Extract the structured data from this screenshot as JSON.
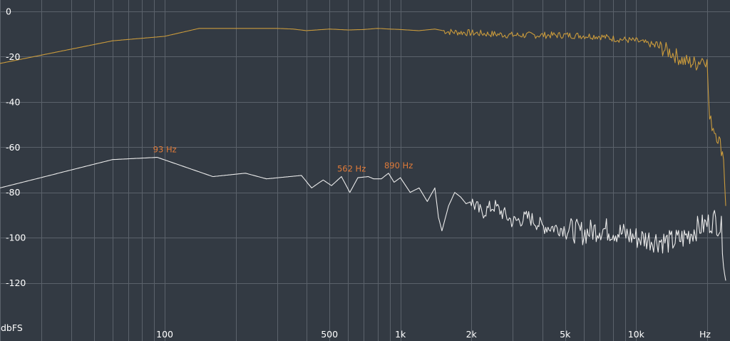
{
  "chart_data": {
    "type": "line",
    "title": "",
    "xlabel": "Hz",
    "ylabel": "dbFS",
    "x_scale": "log",
    "xlim": [
      20,
      24000
    ],
    "ylim": [
      -140,
      0
    ],
    "grid": true,
    "x_ticks": [
      {
        "value": 100,
        "label": "100"
      },
      {
        "value": 500,
        "label": "500"
      },
      {
        "value": 1000,
        "label": "1k"
      },
      {
        "value": 2000,
        "label": "2k"
      },
      {
        "value": 5000,
        "label": "5k"
      },
      {
        "value": 10000,
        "label": "10k"
      }
    ],
    "y_ticks": [
      0,
      -20,
      -40,
      -60,
      -80,
      -100,
      -120
    ],
    "series": [
      {
        "color": "#c99a3c",
        "points": [
          [
            20,
            -23
          ],
          [
            60,
            -13
          ],
          [
            100,
            -11
          ],
          [
            140,
            -7.5
          ],
          [
            200,
            -7.5
          ],
          [
            300,
            -7.5
          ],
          [
            350,
            -7.8
          ],
          [
            400,
            -8.5
          ],
          [
            500,
            -7.8
          ],
          [
            600,
            -8.2
          ],
          [
            700,
            -8
          ],
          [
            800,
            -7.5
          ],
          [
            900,
            -7.8
          ],
          [
            1000,
            -8
          ],
          [
            1200,
            -8.5
          ],
          [
            1400,
            -7.8
          ],
          [
            1600,
            -9
          ],
          [
            2000,
            -9.5
          ],
          [
            3000,
            -10.5
          ],
          [
            5000,
            -10.5
          ],
          [
            7000,
            -11
          ],
          [
            8000,
            -12
          ],
          [
            10000,
            -13
          ],
          [
            12000,
            -15
          ],
          [
            14000,
            -18
          ],
          [
            16000,
            -22
          ],
          [
            18000,
            -23
          ],
          [
            19500,
            -20
          ],
          [
            20000,
            -23
          ],
          [
            20500,
            -48
          ],
          [
            21500,
            -52
          ],
          [
            22500,
            -57
          ],
          [
            23500,
            -64
          ],
          [
            24000,
            -86
          ]
        ]
      },
      {
        "color": "#ebebeb",
        "points": [
          [
            20,
            -78
          ],
          [
            60,
            -65.5
          ],
          [
            93,
            -64.5
          ],
          [
            160,
            -73
          ],
          [
            220,
            -71.5
          ],
          [
            270,
            -74
          ],
          [
            380,
            -72.5
          ],
          [
            420,
            -78
          ],
          [
            470,
            -74.5
          ],
          [
            510,
            -77
          ],
          [
            562,
            -73
          ],
          [
            610,
            -80
          ],
          [
            660,
            -73.5
          ],
          [
            730,
            -73
          ],
          [
            770,
            -74
          ],
          [
            830,
            -74
          ],
          [
            890,
            -71.5
          ],
          [
            940,
            -75.5
          ],
          [
            1000,
            -73.5
          ],
          [
            1100,
            -80
          ],
          [
            1200,
            -78
          ],
          [
            1300,
            -84
          ],
          [
            1400,
            -78
          ],
          [
            1450,
            -91
          ],
          [
            1500,
            -97
          ],
          [
            1600,
            -86
          ],
          [
            1700,
            -80
          ],
          [
            1800,
            -82
          ],
          [
            1900,
            -85
          ],
          [
            2000,
            -84
          ],
          [
            2200,
            -89
          ],
          [
            2500,
            -86
          ],
          [
            3000,
            -93
          ],
          [
            3500,
            -91
          ],
          [
            4000,
            -95
          ],
          [
            5000,
            -96
          ],
          [
            6000,
            -98
          ],
          [
            7000,
            -96
          ],
          [
            8000,
            -97
          ],
          [
            10000,
            -100
          ],
          [
            12000,
            -101
          ],
          [
            14000,
            -102
          ],
          [
            16000,
            -100
          ],
          [
            18000,
            -96
          ],
          [
            20000,
            -94
          ],
          [
            21500,
            -92
          ],
          [
            23000,
            -96
          ],
          [
            24000,
            -119
          ]
        ]
      }
    ],
    "annotations": [
      {
        "x": 93,
        "y": -64.5,
        "text": "93 Hz",
        "color": "#e07b39"
      },
      {
        "x": 562,
        "y": -73,
        "text": "562 Hz",
        "color": "#e07b39"
      },
      {
        "x": 890,
        "y": -71.5,
        "text": "890 Hz",
        "color": "#e07b39"
      }
    ]
  }
}
